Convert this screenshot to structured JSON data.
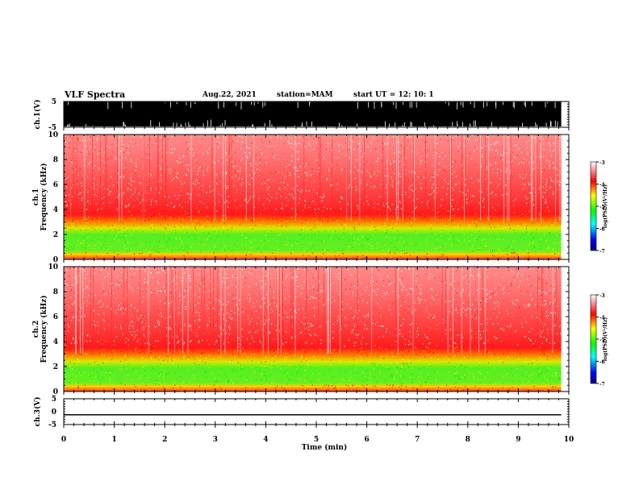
{
  "header": {
    "title": "VLF Spectra",
    "date": "Aug.22, 2021",
    "station": "station=MAM",
    "start": "start  UT =   12: 10: 1"
  },
  "chart_data": [
    {
      "type": "line",
      "name": "ch1-waveform",
      "ylabel": "ch.1(V)",
      "ylim": [
        -5,
        5
      ],
      "yticks": [
        "5",
        "-5"
      ],
      "xlim": [
        0,
        10
      ],
      "note_values": "dense broadband signal filling range (saturated black band)"
    },
    {
      "type": "heatmap",
      "name": "ch1-spectrogram",
      "ylabel": "ch.1",
      "ylabel2": "Frequency  (kHz)",
      "ylim": [
        0,
        10
      ],
      "yticks": [
        "0",
        "2",
        "4",
        "6",
        "8",
        "10"
      ],
      "xlim": [
        0,
        9.85
      ],
      "band_green_khz": [
        0.6,
        2.4
      ],
      "band_yellow_khz": [
        2.4,
        3.1
      ],
      "band_red_khz": [
        3.1,
        4.0
      ],
      "colorbar": {
        "label": "log(PSD)(V²/Hz)",
        "ticks": [
          "-3",
          "-4",
          "-5",
          "-6",
          "-7"
        ],
        "range": [
          -7,
          -3
        ]
      }
    },
    {
      "type": "heatmap",
      "name": "ch2-spectrogram",
      "ylabel": "ch.2",
      "ylabel2": "Frequency  (kHz)",
      "ylim": [
        0,
        10
      ],
      "yticks": [
        "0",
        "2",
        "4",
        "6",
        "8",
        "10"
      ],
      "xlim": [
        0,
        9.85
      ],
      "band_green_khz": [
        0.6,
        2.3
      ],
      "band_yellow_khz": [
        2.3,
        3.0
      ],
      "band_red_khz": [
        3.0,
        3.8
      ],
      "colorbar": {
        "label": "log(PSD)(V²/Hz)",
        "ticks": [
          "-3",
          "-4",
          "-5",
          "-6",
          "-7"
        ],
        "range": [
          -7,
          -3
        ]
      }
    },
    {
      "type": "line",
      "name": "ch3-waveform",
      "ylabel": "ch.3(V)",
      "ylim": [
        -5,
        5
      ],
      "yticks": [
        "5",
        "0",
        "-5"
      ],
      "xlim": [
        0,
        9.85
      ],
      "constant_value": -1.2
    }
  ],
  "xaxis": {
    "label": "Time  (min)",
    "ticks": [
      "0",
      "1",
      "2",
      "3",
      "4",
      "5",
      "6",
      "7",
      "8",
      "9",
      "10"
    ],
    "range": [
      0,
      10
    ]
  },
  "colors": {
    "background": "#ffffff",
    "high": "#ff0000",
    "mid": "#ffff00",
    "low": "#00ff00",
    "lowest": "#0000ff",
    "darkest": "#000080"
  }
}
